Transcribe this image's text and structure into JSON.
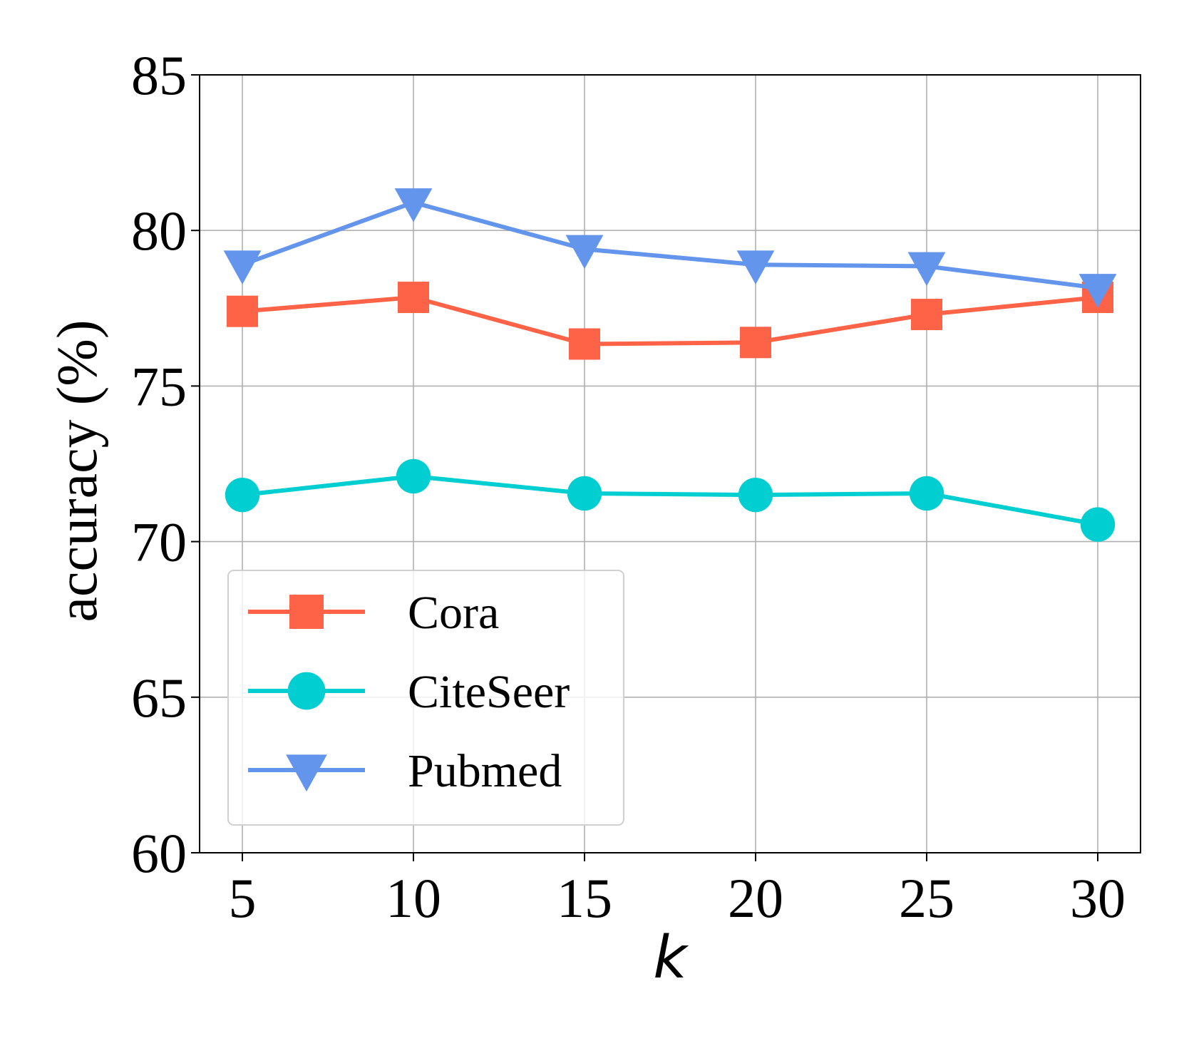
{
  "chart_data": {
    "type": "line",
    "title": "",
    "xlabel": "k",
    "ylabel": "accuracy (%)",
    "x": [
      5,
      10,
      15,
      20,
      25,
      30
    ],
    "xticks": [
      "5",
      "10",
      "15",
      "20",
      "25",
      "30"
    ],
    "yticks": [
      "60",
      "65",
      "70",
      "75",
      "80",
      "85"
    ],
    "ylim": [
      60,
      85
    ],
    "xlim": [
      3.75,
      31.25
    ],
    "grid": true,
    "legend_position": "lower-left",
    "series": [
      {
        "name": "Cora",
        "marker": "square",
        "color": "#FF6347",
        "values": [
          77.4,
          77.85,
          76.35,
          76.4,
          77.3,
          77.85
        ]
      },
      {
        "name": "CiteSeer",
        "marker": "circle",
        "color": "#00CED1",
        "values": [
          71.5,
          72.1,
          71.55,
          71.5,
          71.55,
          70.55
        ]
      },
      {
        "name": "Pubmed",
        "marker": "triangle-down",
        "color": "#6495ED",
        "values": [
          78.9,
          80.9,
          79.4,
          78.9,
          78.85,
          78.15
        ]
      }
    ]
  }
}
